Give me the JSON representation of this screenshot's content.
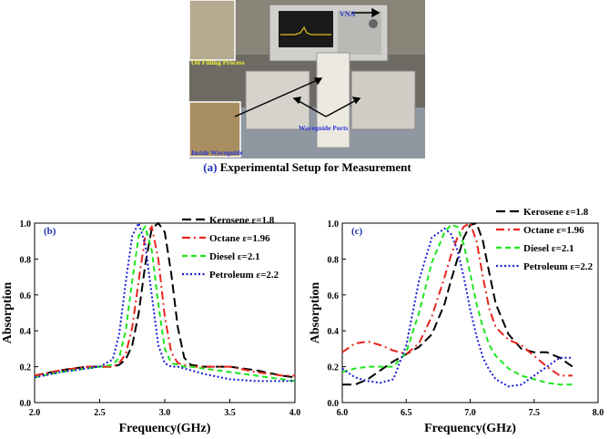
{
  "figure_a": {
    "panel_label": "(a)",
    "caption": "Experimental Setup for Measurement",
    "photo_labels": {
      "vna": "VNA",
      "oil_filling": "Oil Filling Process",
      "waveguide_ports": "Waveguide Ports",
      "inside_waveguide": "Inside Waveguide"
    }
  },
  "colors": {
    "kerosene": "#000000",
    "octane": "#e8251c",
    "diesel": "#1ee61e",
    "petroleum": "#1b1bd9",
    "panel_label": "#1f2fb5",
    "photo_label_yellow": "#f2f23a",
    "photo_label_blue": "#2b35d8"
  },
  "chart_data": [
    {
      "type": "line",
      "panel_label": "(b)",
      "xlabel": "Frequency(GHz)",
      "ylabel": "Absorption",
      "xlim": [
        2.0,
        4.0
      ],
      "ylim": [
        0.0,
        1.0
      ],
      "xticks": [
        "2.0",
        "2.5",
        "3.0",
        "3.5",
        "4.0"
      ],
      "yticks": [
        "0.0",
        "0.2",
        "0.4",
        "0.6",
        "0.8",
        "1.0"
      ],
      "legend_position": "top-right",
      "x": [
        2.0,
        2.2,
        2.4,
        2.5,
        2.6,
        2.65,
        2.7,
        2.75,
        2.8,
        2.85,
        2.9,
        2.95,
        3.0,
        3.05,
        3.1,
        3.15,
        3.2,
        3.3,
        3.5,
        3.7,
        3.9,
        4.0
      ],
      "series": [
        {
          "name": "Kerosene ε=1.8",
          "style": "long-dash",
          "values": [
            0.15,
            0.18,
            0.2,
            0.2,
            0.2,
            0.21,
            0.24,
            0.32,
            0.5,
            0.77,
            0.97,
            1.0,
            0.95,
            0.72,
            0.42,
            0.25,
            0.21,
            0.2,
            0.2,
            0.18,
            0.15,
            0.14
          ]
        },
        {
          "name": "Octane ε=1.96",
          "style": "dash-dot",
          "values": [
            0.15,
            0.18,
            0.2,
            0.2,
            0.2,
            0.22,
            0.27,
            0.42,
            0.68,
            0.93,
            0.98,
            0.8,
            0.48,
            0.28,
            0.22,
            0.21,
            0.2,
            0.2,
            0.2,
            0.17,
            0.15,
            0.15
          ]
        },
        {
          "name": "Diesel ε=2.1",
          "style": "dash",
          "values": [
            0.14,
            0.17,
            0.19,
            0.2,
            0.21,
            0.25,
            0.4,
            0.68,
            0.93,
            0.98,
            0.85,
            0.55,
            0.3,
            0.22,
            0.21,
            0.2,
            0.2,
            0.19,
            0.17,
            0.15,
            0.13,
            0.12
          ]
        },
        {
          "name": "Petroleum ε=2.2",
          "style": "dotted",
          "values": [
            0.14,
            0.17,
            0.19,
            0.2,
            0.24,
            0.38,
            0.67,
            0.93,
            1.0,
            0.88,
            0.6,
            0.32,
            0.22,
            0.2,
            0.2,
            0.19,
            0.18,
            0.16,
            0.13,
            0.12,
            0.12,
            0.12
          ]
        }
      ]
    },
    {
      "type": "line",
      "panel_label": "(c)",
      "xlabel": "Frequency(GHz)",
      "ylabel": "Absorption",
      "xlim": [
        6.0,
        8.0
      ],
      "ylim": [
        0.0,
        1.0
      ],
      "xticks": [
        "6.0",
        "6.5",
        "7.0",
        "7.5",
        "8.0"
      ],
      "yticks": [
        "0.0",
        "0.2",
        "0.4",
        "0.6",
        "0.8",
        "1.0"
      ],
      "legend_position": "top-right",
      "x": [
        6.0,
        6.1,
        6.2,
        6.3,
        6.4,
        6.5,
        6.6,
        6.7,
        6.8,
        6.85,
        6.9,
        6.95,
        7.0,
        7.05,
        7.1,
        7.15,
        7.2,
        7.3,
        7.4,
        7.5,
        7.6,
        7.7,
        7.8
      ],
      "series": [
        {
          "name": "Kerosene ε=1.8",
          "style": "long-dash",
          "values": [
            0.1,
            0.1,
            0.13,
            0.18,
            0.23,
            0.27,
            0.31,
            0.38,
            0.55,
            0.68,
            0.8,
            0.92,
            0.99,
            1.0,
            0.9,
            0.72,
            0.55,
            0.38,
            0.3,
            0.28,
            0.28,
            0.25,
            0.2
          ]
        },
        {
          "name": "Octane ε=1.96",
          "style": "dash-dot",
          "values": [
            0.28,
            0.33,
            0.34,
            0.32,
            0.29,
            0.27,
            0.33,
            0.48,
            0.7,
            0.82,
            0.92,
            0.98,
            1.0,
            0.9,
            0.7,
            0.52,
            0.42,
            0.35,
            0.32,
            0.26,
            0.2,
            0.15,
            0.15
          ]
        },
        {
          "name": "Diesel ε=2.1",
          "style": "dash",
          "values": [
            0.17,
            0.19,
            0.2,
            0.2,
            0.2,
            0.28,
            0.5,
            0.78,
            0.95,
            0.99,
            0.98,
            0.88,
            0.72,
            0.55,
            0.42,
            0.32,
            0.26,
            0.19,
            0.15,
            0.13,
            0.11,
            0.1,
            0.1
          ]
        },
        {
          "name": "Petroleum ε=2.2",
          "style": "dotted",
          "values": [
            0.19,
            0.14,
            0.12,
            0.11,
            0.13,
            0.32,
            0.68,
            0.92,
            0.97,
            0.94,
            0.85,
            0.7,
            0.52,
            0.37,
            0.25,
            0.18,
            0.13,
            0.09,
            0.1,
            0.15,
            0.2,
            0.25,
            0.25
          ]
        }
      ]
    }
  ]
}
